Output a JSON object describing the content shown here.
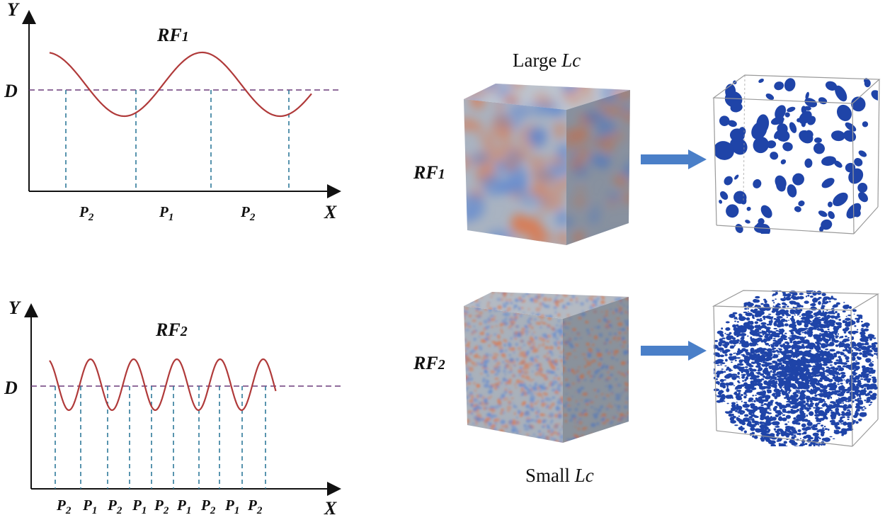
{
  "panel_top": {
    "y_axis_label": "Y",
    "x_axis_label": "X",
    "threshold_label": "D",
    "field_label": {
      "main": "RF",
      "sub": "1"
    },
    "partition_labels": [
      {
        "main": "P",
        "sub": "2"
      },
      {
        "main": "P",
        "sub": "1"
      },
      {
        "main": "P",
        "sub": "2"
      }
    ]
  },
  "panel_bottom": {
    "y_axis_label": "Y",
    "x_axis_label": "X",
    "threshold_label": "D",
    "field_label": {
      "main": "RF",
      "sub": "2"
    },
    "partition_labels": [
      {
        "main": "P",
        "sub": "2"
      },
      {
        "main": "P",
        "sub": "1"
      },
      {
        "main": "P",
        "sub": "2"
      },
      {
        "main": "P",
        "sub": "1"
      },
      {
        "main": "P",
        "sub": "2"
      },
      {
        "main": "P",
        "sub": "1"
      },
      {
        "main": "P",
        "sub": "2"
      },
      {
        "main": "P",
        "sub": "1"
      },
      {
        "main": "P",
        "sub": "2"
      }
    ]
  },
  "cubes": {
    "top_caption_prefix": "Large ",
    "top_caption_italic": "Lc",
    "bottom_caption_prefix": "Small ",
    "bottom_caption_italic": "Lc",
    "row1_label": {
      "main": "RF",
      "sub": "1"
    },
    "row2_label": {
      "main": "RF",
      "sub": "2"
    }
  },
  "colors": {
    "curve": "#b03a3a",
    "threshold_line": "#6b3b7a",
    "drop_lines": "#2f7a9a",
    "arrow": "#4a7fc8",
    "pore_blue": "#1f44a8",
    "cube_gray": "#a8b1bd",
    "cube_orange": "#d97a52",
    "cube_blue": "#5c86d1"
  }
}
